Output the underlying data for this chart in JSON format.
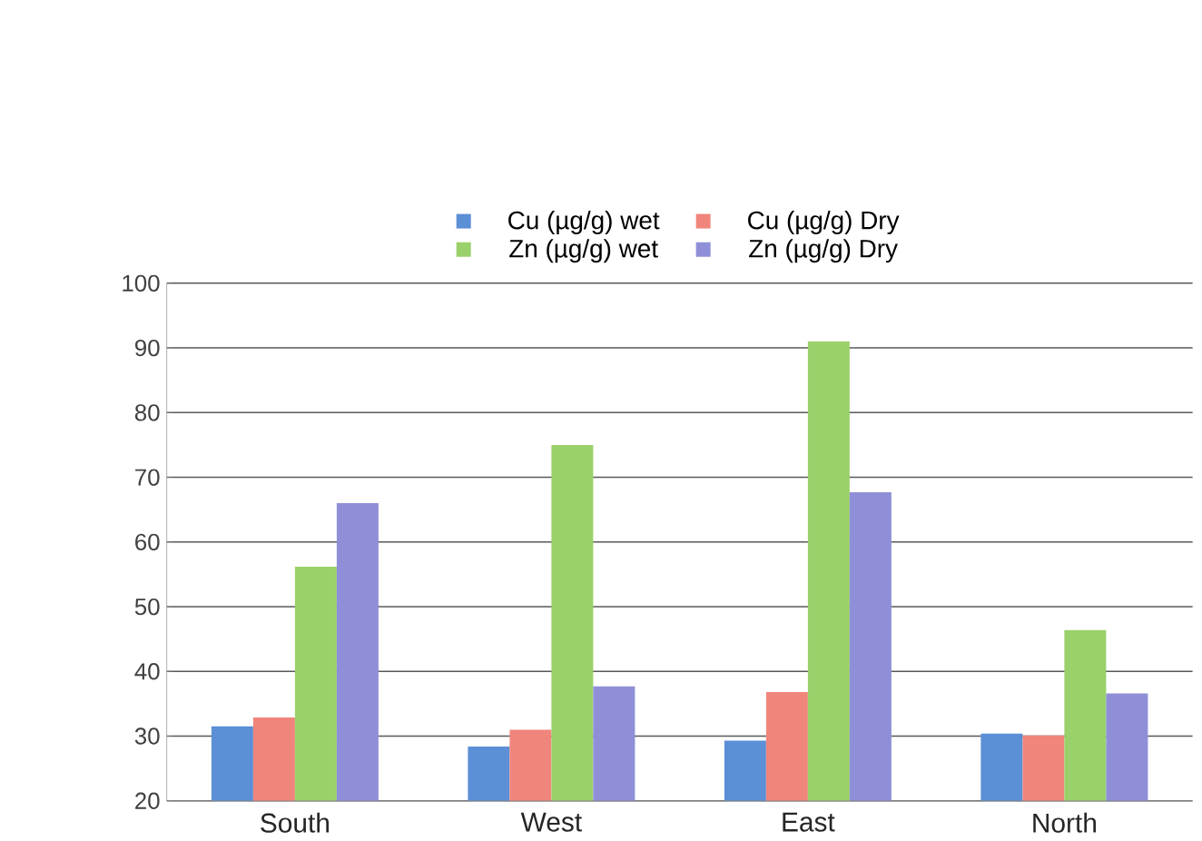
{
  "chart_data": {
    "type": "bar",
    "categories": [
      "South",
      "West",
      "East",
      "North"
    ],
    "series": [
      {
        "name": "Cu (µg/g) wet",
        "color": "#5b8fd6",
        "values": [
          31.5,
          28.4,
          29.3,
          30.4
        ]
      },
      {
        "name": "Cu (µg/g) Dry",
        "color": "#f0857c",
        "values": [
          32.9,
          31.0,
          36.8,
          30.1
        ]
      },
      {
        "name": "Zn (µg/g) wet",
        "color": "#9ad16a",
        "values": [
          56.2,
          75.0,
          91.0,
          46.4
        ]
      },
      {
        "name": "Zn (µg/g) Dry",
        "color": "#8f8fd8",
        "values": [
          66.0,
          37.7,
          67.7,
          36.6
        ]
      }
    ],
    "ylim": [
      20,
      100
    ],
    "yticks": [
      20,
      30,
      40,
      50,
      60,
      70,
      80,
      90,
      100
    ],
    "grid": "y",
    "legend": "top"
  }
}
